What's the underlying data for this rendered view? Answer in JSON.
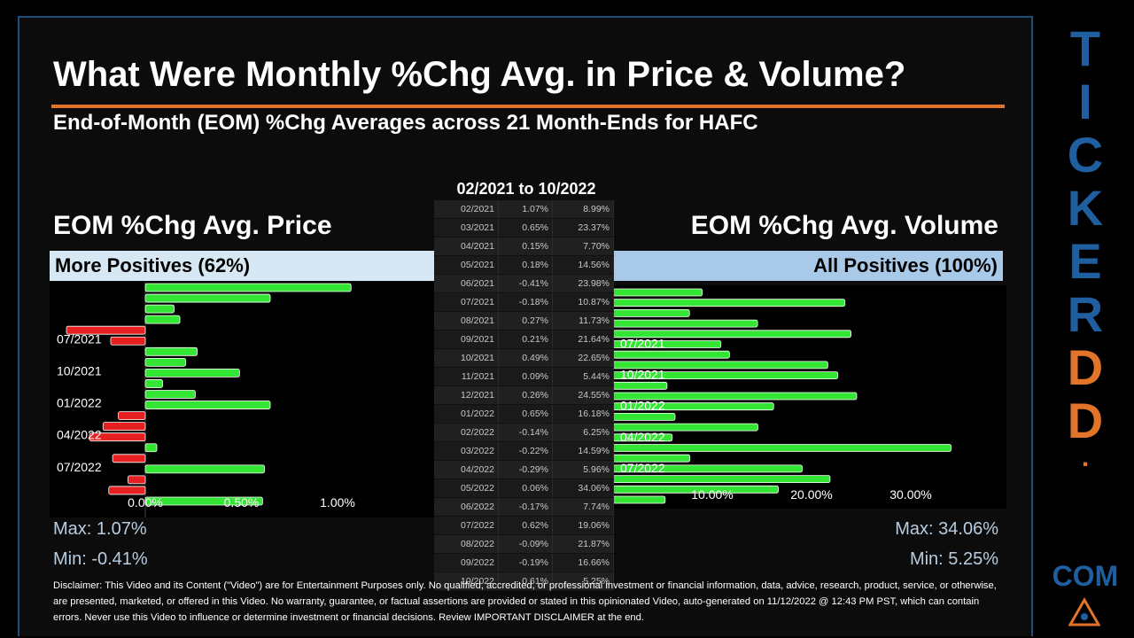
{
  "header": {
    "title": "What Were Monthly %Chg Avg. in Price & Volume?",
    "subtitle": "End-of-Month (EOM) %Chg Averages across 21 Month-Ends for HAFC",
    "date_range": "02/2021 to 10/2022"
  },
  "price_panel": {
    "title": "EOM %Chg Avg. Price",
    "band": "More Positives (62%)",
    "max": "Max: 1.07%",
    "min": "Min: -0.41%"
  },
  "volume_panel": {
    "title": "EOM %Chg Avg. Volume",
    "band": "All Positives (100%)",
    "max": "Max: 34.06%",
    "min": "Min: 5.25%"
  },
  "table": {
    "rows": [
      [
        "02/2021",
        "1.07%",
        "8.99%"
      ],
      [
        "03/2021",
        "0.65%",
        "23.37%"
      ],
      [
        "04/2021",
        "0.15%",
        "7.70%"
      ],
      [
        "05/2021",
        "0.18%",
        "14.56%"
      ],
      [
        "06/2021",
        "-0.41%",
        "23.98%"
      ],
      [
        "07/2021",
        "-0.18%",
        "10.87%"
      ],
      [
        "08/2021",
        "0.27%",
        "11.73%"
      ],
      [
        "09/2021",
        "0.21%",
        "21.64%"
      ],
      [
        "10/2021",
        "0.49%",
        "22.65%"
      ],
      [
        "11/2021",
        "0.09%",
        "5.44%"
      ],
      [
        "12/2021",
        "0.26%",
        "24.55%"
      ],
      [
        "01/2022",
        "0.65%",
        "16.18%"
      ],
      [
        "02/2022",
        "-0.14%",
        "6.25%"
      ],
      [
        "03/2022",
        "-0.22%",
        "14.59%"
      ],
      [
        "04/2022",
        "-0.29%",
        "5.96%"
      ],
      [
        "05/2022",
        "0.06%",
        "34.06%"
      ],
      [
        "06/2022",
        "-0.17%",
        "7.74%"
      ],
      [
        "07/2022",
        "0.62%",
        "19.06%"
      ],
      [
        "08/2022",
        "-0.09%",
        "21.87%"
      ],
      [
        "09/2022",
        "-0.19%",
        "16.66%"
      ],
      [
        "10/2022",
        "0.61%",
        "5.25%"
      ]
    ]
  },
  "disclaimer": "Disclaimer: This Video and its Content (\"Video\") are for Entertainment Purposes only. No qualified, accredited, or professional investment or financial information, data, advice, research, product, service, or otherwise, are presented, marketed, or offered in this Video. No warranty, guarantee, or factual assertions are provided or stated in this opinionated Video, auto-generated on 11/12/2022 @ 12:43 PM PST, which can contain errors. Never use this Video to influence or determine investment or financial decisions. Review IMPORTANT DISCLAIMER at the end.",
  "brand": {
    "letters": [
      "T",
      "I",
      "C",
      "K",
      "E",
      "R",
      "D",
      "D",
      "."
    ],
    "com": "COM",
    "blue": "#1f5fa0",
    "orange": "#e2742a"
  },
  "colors": {
    "positive_bar": "#33e633",
    "negative_bar": "#e62020",
    "accent_rule": "#e2742a"
  },
  "chart_data": [
    {
      "type": "bar",
      "orientation": "horizontal",
      "title": "EOM %Chg Avg. Price",
      "categories": [
        "02/2021",
        "03/2021",
        "04/2021",
        "05/2021",
        "06/2021",
        "07/2021",
        "08/2021",
        "09/2021",
        "10/2021",
        "11/2021",
        "12/2021",
        "01/2022",
        "02/2022",
        "03/2022",
        "04/2022",
        "05/2022",
        "06/2022",
        "07/2022",
        "08/2022",
        "09/2022",
        "10/2022"
      ],
      "values": [
        1.07,
        0.65,
        0.15,
        0.18,
        -0.41,
        -0.18,
        0.27,
        0.21,
        0.49,
        0.09,
        0.26,
        0.65,
        -0.14,
        -0.22,
        -0.29,
        0.06,
        -0.17,
        0.62,
        -0.09,
        -0.19,
        0.61
      ],
      "category_tick_labels": [
        "07/2021",
        "10/2021",
        "01/2022",
        "04/2022",
        "07/2022"
      ],
      "value_tick_labels": [
        "0.00%",
        "0.50%",
        "1.00%"
      ],
      "xlim": [
        -0.5,
        1.23
      ]
    },
    {
      "type": "bar",
      "orientation": "horizontal",
      "title": "EOM %Chg Avg. Volume",
      "categories": [
        "02/2021",
        "03/2021",
        "04/2021",
        "05/2021",
        "06/2021",
        "07/2021",
        "08/2021",
        "09/2021",
        "10/2021",
        "11/2021",
        "12/2021",
        "01/2022",
        "02/2022",
        "03/2022",
        "04/2022",
        "05/2022",
        "06/2022",
        "07/2022",
        "08/2022",
        "09/2022",
        "10/2022"
      ],
      "values": [
        8.99,
        23.37,
        7.7,
        14.56,
        23.98,
        10.87,
        11.73,
        21.64,
        22.65,
        5.44,
        24.55,
        16.18,
        6.25,
        14.59,
        5.96,
        34.06,
        7.74,
        19.06,
        21.87,
        16.66,
        5.25
      ],
      "category_tick_labels": [
        "07/2021",
        "10/2021",
        "01/2022",
        "04/2022",
        "07/2022"
      ],
      "value_tick_labels": [
        "10.00%",
        "20.00%",
        "30.00%"
      ],
      "xlim": [
        0,
        39.5
      ]
    }
  ]
}
